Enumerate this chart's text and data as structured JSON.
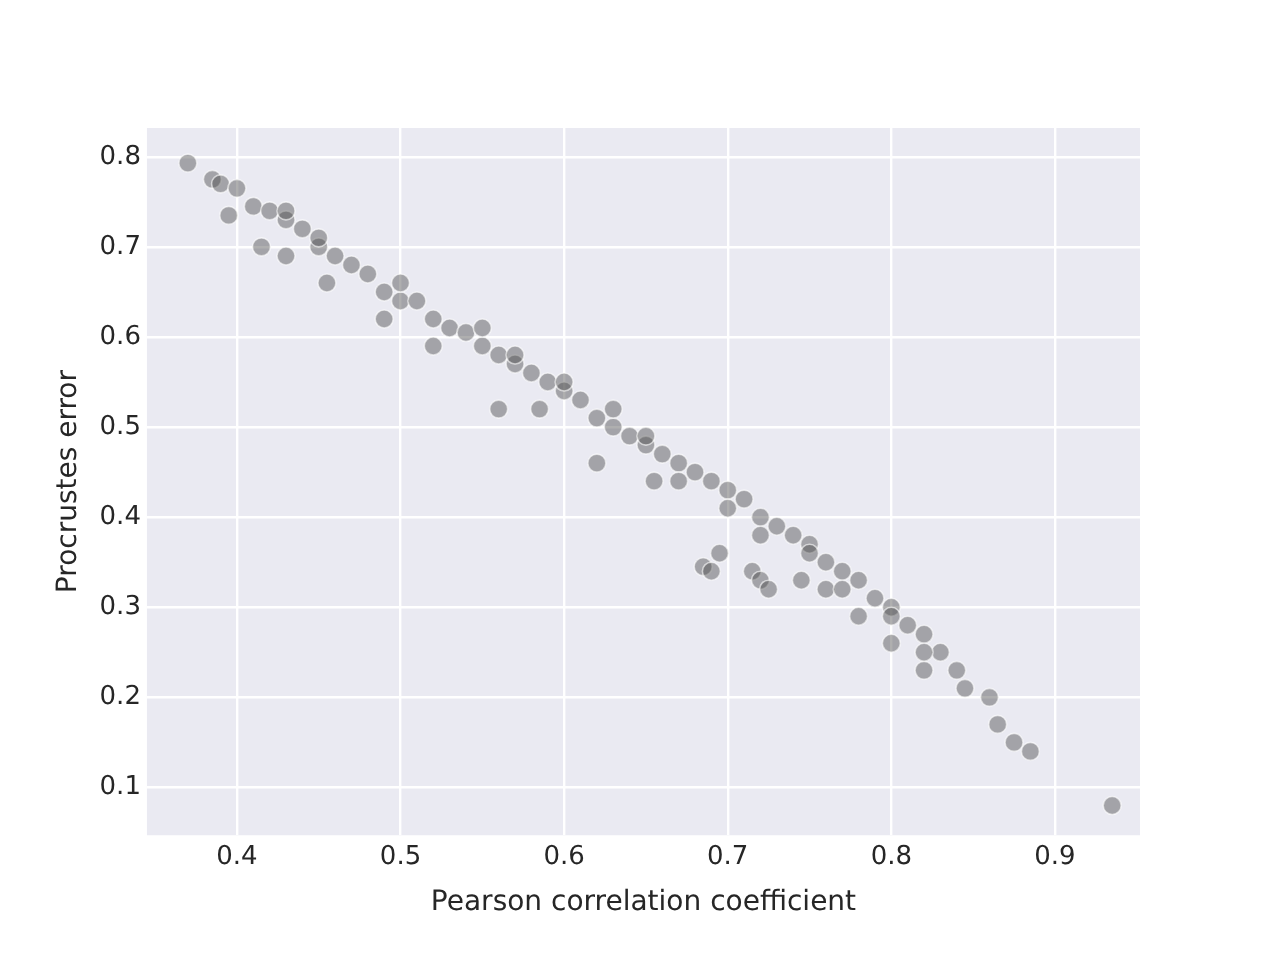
{
  "chart_data": {
    "type": "scatter",
    "xlabel": "Pearson correlation coefficient",
    "ylabel": "Procrustes error",
    "xlim": [
      0.345,
      0.952
    ],
    "ylim": [
      0.047,
      0.832
    ],
    "xticks": [
      0.4,
      0.5,
      0.6,
      0.7,
      0.8,
      0.9
    ],
    "yticks": [
      0.1,
      0.2,
      0.3,
      0.4,
      0.5,
      0.6,
      0.7,
      0.8
    ],
    "grid": true,
    "marker": "circle",
    "x": [
      0.37,
      0.385,
      0.39,
      0.4,
      0.395,
      0.41,
      0.42,
      0.415,
      0.43,
      0.44,
      0.43,
      0.45,
      0.46,
      0.47,
      0.455,
      0.48,
      0.49,
      0.5,
      0.51,
      0.49,
      0.52,
      0.53,
      0.54,
      0.52,
      0.55,
      0.56,
      0.57,
      0.56,
      0.58,
      0.59,
      0.6,
      0.585,
      0.61,
      0.62,
      0.63,
      0.62,
      0.64,
      0.65,
      0.66,
      0.67,
      0.655,
      0.68,
      0.69,
      0.7,
      0.685,
      0.69,
      0.695,
      0.71,
      0.715,
      0.72,
      0.73,
      0.72,
      0.725,
      0.74,
      0.75,
      0.745,
      0.76,
      0.77,
      0.76,
      0.78,
      0.79,
      0.78,
      0.8,
      0.81,
      0.8,
      0.82,
      0.83,
      0.82,
      0.84,
      0.845,
      0.86,
      0.865,
      0.875,
      0.885,
      0.935,
      0.6,
      0.65,
      0.7,
      0.75,
      0.8,
      0.55,
      0.45,
      0.57,
      0.63,
      0.67,
      0.72,
      0.77,
      0.82,
      0.5,
      0.43
    ],
    "values": [
      0.793,
      0.775,
      0.77,
      0.765,
      0.735,
      0.745,
      0.74,
      0.7,
      0.73,
      0.72,
      0.69,
      0.7,
      0.69,
      0.68,
      0.66,
      0.67,
      0.65,
      0.64,
      0.64,
      0.62,
      0.62,
      0.61,
      0.605,
      0.59,
      0.59,
      0.58,
      0.57,
      0.52,
      0.56,
      0.55,
      0.54,
      0.52,
      0.53,
      0.51,
      0.5,
      0.46,
      0.49,
      0.48,
      0.47,
      0.46,
      0.44,
      0.45,
      0.44,
      0.43,
      0.345,
      0.34,
      0.36,
      0.42,
      0.34,
      0.4,
      0.39,
      0.33,
      0.32,
      0.38,
      0.37,
      0.33,
      0.35,
      0.34,
      0.32,
      0.33,
      0.31,
      0.29,
      0.3,
      0.28,
      0.26,
      0.27,
      0.25,
      0.23,
      0.23,
      0.21,
      0.2,
      0.17,
      0.15,
      0.14,
      0.08,
      0.55,
      0.49,
      0.41,
      0.36,
      0.29,
      0.61,
      0.71,
      0.58,
      0.52,
      0.44,
      0.38,
      0.32,
      0.25,
      0.66,
      0.74
    ],
    "color": "#4d4d4d"
  }
}
